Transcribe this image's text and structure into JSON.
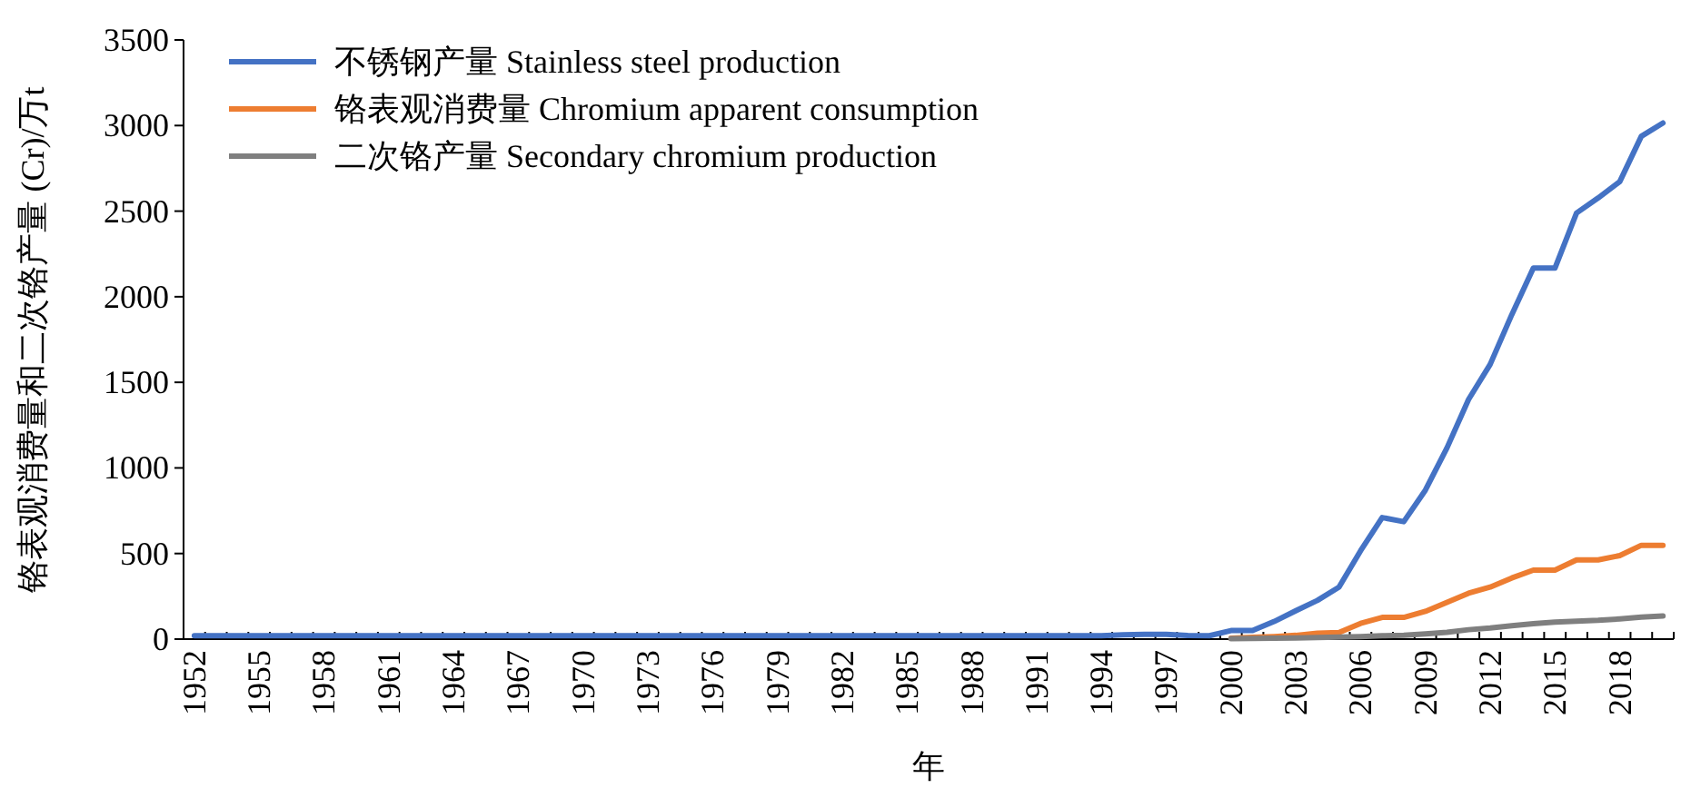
{
  "chart_data": {
    "type": "line",
    "ylabel": "铬表观消费量和二次铬产量 (Cr)/万t",
    "xlabel": "年",
    "categories": [
      "1952",
      null,
      null,
      "1955",
      null,
      null,
      "1958",
      null,
      null,
      "1961",
      null,
      null,
      "1964",
      null,
      null,
      "1967",
      null,
      null,
      "1970",
      null,
      null,
      "1973",
      null,
      null,
      "1976",
      null,
      null,
      "1979",
      null,
      null,
      "1982",
      null,
      null,
      "1985",
      null,
      null,
      "1988",
      null,
      null,
      "1991",
      null,
      null,
      "1994",
      null,
      null,
      "1997",
      null,
      null,
      "2000",
      null,
      null,
      "2003",
      null,
      null,
      "2006",
      null,
      null,
      "2009",
      null,
      null,
      "2012",
      null,
      null,
      "2015",
      null,
      null,
      "2018",
      null,
      null
    ],
    "series": [
      {
        "name": "不锈钢产量 Stainless steel production",
        "color": "#4472c4",
        "values": [
          20,
          20,
          20,
          20,
          20,
          20,
          20,
          20,
          20,
          20,
          20,
          20,
          20,
          20,
          20,
          20,
          20,
          20,
          20,
          20,
          20,
          20,
          20,
          20,
          20,
          20,
          20,
          20,
          20,
          20,
          20,
          20,
          20,
          20,
          20,
          20,
          20,
          20,
          20,
          20,
          20,
          20,
          20,
          25,
          28,
          28,
          21,
          20,
          50,
          50,
          103,
          166,
          226,
          304,
          516,
          710,
          686,
          870,
          1117,
          1400,
          1605,
          1895,
          2167,
          2167,
          2489,
          2577,
          2672,
          2937,
          3015
        ]
      },
      {
        "name": "铬表观消费量 Chromium apparent consumption",
        "color": "#ed7d31",
        "values": [
          null,
          null,
          null,
          null,
          null,
          null,
          null,
          null,
          null,
          null,
          null,
          null,
          null,
          null,
          null,
          null,
          null,
          null,
          null,
          null,
          null,
          null,
          null,
          null,
          null,
          null,
          null,
          null,
          null,
          null,
          null,
          null,
          null,
          null,
          null,
          null,
          null,
          null,
          null,
          null,
          null,
          null,
          null,
          null,
          null,
          null,
          null,
          null,
          5,
          10,
          15,
          22,
          35,
          38,
          92,
          127,
          127,
          162,
          215,
          268,
          304,
          357,
          403,
          403,
          463,
          463,
          488,
          548,
          548
        ]
      },
      {
        "name": "二次铬产量 Secondary chromium production",
        "color": "#7f7f7f",
        "values": [
          null,
          null,
          null,
          null,
          null,
          null,
          null,
          null,
          null,
          null,
          null,
          null,
          null,
          null,
          null,
          null,
          null,
          null,
          null,
          null,
          null,
          null,
          null,
          null,
          null,
          null,
          null,
          null,
          null,
          null,
          null,
          null,
          null,
          null,
          null,
          null,
          null,
          null,
          null,
          null,
          null,
          null,
          null,
          null,
          null,
          null,
          null,
          null,
          3,
          4,
          5,
          7,
          9,
          12,
          15,
          20,
          22,
          30,
          40,
          55,
          65,
          78,
          90,
          100,
          105,
          110,
          118,
          128,
          135
        ]
      }
    ],
    "ylim": [
      0,
      3500
    ],
    "yticks": [
      0,
      500,
      1000,
      1500,
      2000,
      2500,
      3000,
      3500
    ],
    "grid": false,
    "legend": "top left",
    "marker": "none",
    "line_style": "solid"
  }
}
